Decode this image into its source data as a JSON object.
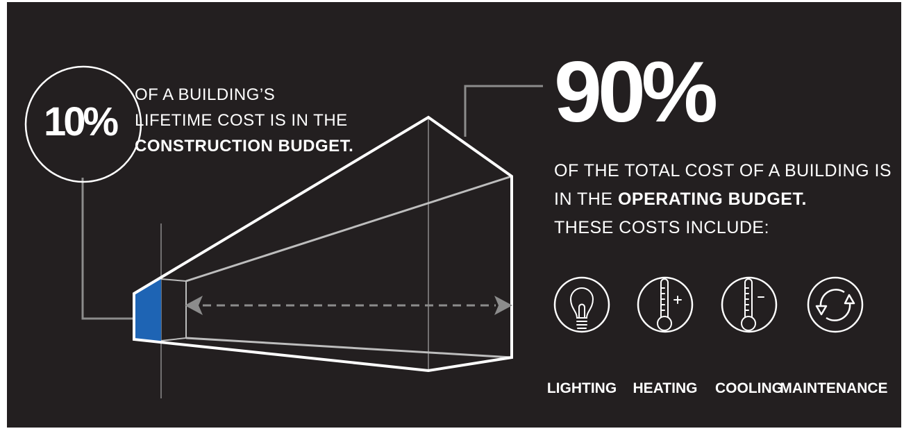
{
  "colors": {
    "background": "#231f20",
    "foreground": "#ffffff",
    "line_grey": "#8c8c8c",
    "construction_fill": "#1e64b4"
  },
  "construction": {
    "percent": "10%",
    "line1": "OF A BUILDING’S",
    "line2": "LIFETIME COST IS IN THE",
    "line3": "CONSTRUCTION BUDGET."
  },
  "operating": {
    "percent": "90%",
    "line1": "OF THE TOTAL COST OF A BUILDING IS",
    "line2_prefix": "IN THE ",
    "line2_bold": "OPERATING BUDGET.",
    "line3": "THESE COSTS INCLUDE:"
  },
  "costs": [
    {
      "label": "LIGHTING",
      "icon": "lightbulb-icon"
    },
    {
      "label": "HEATING",
      "icon": "thermometer-plus-icon"
    },
    {
      "label": "COOLING",
      "icon": "thermometer-minus-icon"
    },
    {
      "label": "MAINTENANCE",
      "icon": "cycle-arrows-icon"
    }
  ]
}
